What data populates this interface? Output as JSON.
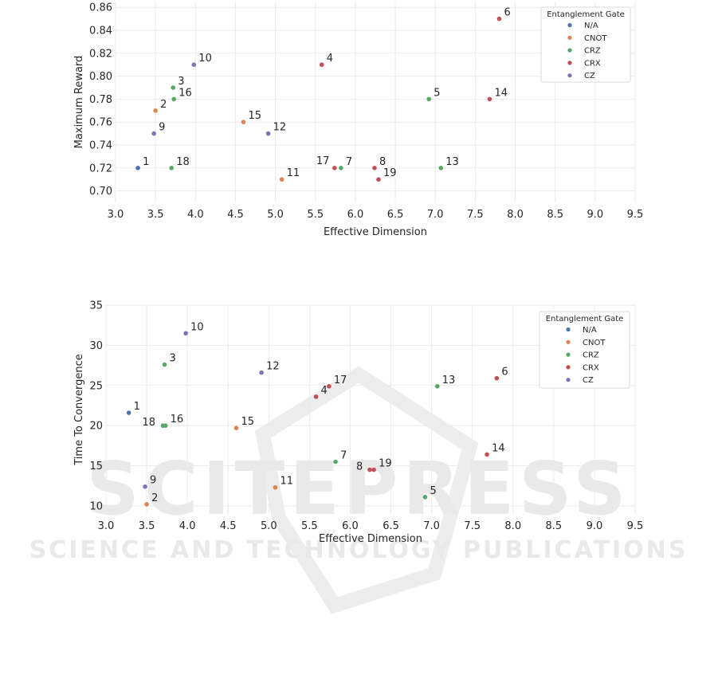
{
  "watermark": {
    "main": "SCITEPRESS",
    "sub": "SCIENCE AND TECHNOLOGY PUBLICATIONS"
  },
  "colors": {
    "N/A": "#4c72b0",
    "CNOT": "#dd8452",
    "CRZ": "#55a868",
    "CRX": "#c44e52",
    "CZ": "#8172b3"
  },
  "chart_data": [
    {
      "type": "scatter",
      "xlabel": "Effective Dimension",
      "ylabel": "Maximum Reward",
      "xlim": [
        3.0,
        9.5
      ],
      "ylim": [
        0.69,
        0.865
      ],
      "xticks": [
        "3.0",
        "3.5",
        "4.0",
        "4.5",
        "5.0",
        "5.5",
        "6.0",
        "6.5",
        "7.0",
        "7.5",
        "8.0",
        "8.5",
        "9.0",
        "9.5"
      ],
      "yticks": [
        "0.70",
        "0.72",
        "0.74",
        "0.76",
        "0.78",
        "0.80",
        "0.82",
        "0.84",
        "0.86"
      ],
      "grid": true,
      "legend": {
        "title": "Entanglement Gate",
        "entries": [
          "N/A",
          "CNOT",
          "CRZ",
          "CRX",
          "CZ"
        ],
        "placement": "top-right"
      },
      "points": [
        {
          "label": "1",
          "x": 3.28,
          "y": 0.72,
          "gate": "N/A"
        },
        {
          "label": "2",
          "x": 3.5,
          "y": 0.77,
          "gate": "CNOT"
        },
        {
          "label": "3",
          "x": 3.72,
          "y": 0.79,
          "gate": "CRZ"
        },
        {
          "label": "4",
          "x": 5.58,
          "y": 0.81,
          "gate": "CRX"
        },
        {
          "label": "5",
          "x": 6.92,
          "y": 0.78,
          "gate": "CRZ"
        },
        {
          "label": "6",
          "x": 7.8,
          "y": 0.85,
          "gate": "CRX"
        },
        {
          "label": "7",
          "x": 5.82,
          "y": 0.72,
          "gate": "CRZ"
        },
        {
          "label": "8",
          "x": 6.24,
          "y": 0.72,
          "gate": "CRX"
        },
        {
          "label": "9",
          "x": 3.48,
          "y": 0.75,
          "gate": "CZ"
        },
        {
          "label": "10",
          "x": 3.98,
          "y": 0.81,
          "gate": "CZ"
        },
        {
          "label": "11",
          "x": 5.08,
          "y": 0.71,
          "gate": "CNOT"
        },
        {
          "label": "12",
          "x": 4.91,
          "y": 0.75,
          "gate": "CZ"
        },
        {
          "label": "13",
          "x": 7.07,
          "y": 0.72,
          "gate": "CRZ"
        },
        {
          "label": "14",
          "x": 7.68,
          "y": 0.78,
          "gate": "CRX"
        },
        {
          "label": "15",
          "x": 4.6,
          "y": 0.76,
          "gate": "CNOT"
        },
        {
          "label": "16",
          "x": 3.73,
          "y": 0.78,
          "gate": "CRZ"
        },
        {
          "label": "17",
          "x": 5.74,
          "y": 0.72,
          "gate": "CRX"
        },
        {
          "label": "18",
          "x": 3.7,
          "y": 0.72,
          "gate": "CRZ"
        },
        {
          "label": "19",
          "x": 6.29,
          "y": 0.71,
          "gate": "CRX"
        }
      ]
    },
    {
      "type": "scatter",
      "xlabel": "Effective Dimension",
      "ylabel": "Time To Convergence",
      "xlim": [
        3.0,
        9.5
      ],
      "ylim": [
        9,
        35
      ],
      "xticks": [
        "3.0",
        "3.5",
        "4.0",
        "4.5",
        "5.0",
        "5.5",
        "6.0",
        "6.5",
        "7.0",
        "7.5",
        "8.0",
        "8.5",
        "9.0",
        "9.5"
      ],
      "yticks": [
        "10",
        "15",
        "20",
        "25",
        "30",
        "35"
      ],
      "grid": true,
      "legend": {
        "title": "Entanglement Gate",
        "entries": [
          "N/A",
          "CNOT",
          "CRZ",
          "CRX",
          "CZ"
        ],
        "placement": "top-right"
      },
      "points": [
        {
          "label": "1",
          "x": 3.28,
          "y": 21.6,
          "gate": "N/A"
        },
        {
          "label": "2",
          "x": 3.5,
          "y": 10.2,
          "gate": "CNOT"
        },
        {
          "label": "3",
          "x": 3.72,
          "y": 27.6,
          "gate": "CRZ"
        },
        {
          "label": "4",
          "x": 5.58,
          "y": 23.6,
          "gate": "CRX"
        },
        {
          "label": "5",
          "x": 6.92,
          "y": 11.1,
          "gate": "CRZ"
        },
        {
          "label": "6",
          "x": 7.8,
          "y": 25.9,
          "gate": "CRX"
        },
        {
          "label": "7",
          "x": 5.82,
          "y": 15.5,
          "gate": "CRZ"
        },
        {
          "label": "8",
          "x": 6.24,
          "y": 14.5,
          "gate": "CRX"
        },
        {
          "label": "9",
          "x": 3.48,
          "y": 12.4,
          "gate": "CZ"
        },
        {
          "label": "10",
          "x": 3.98,
          "y": 31.5,
          "gate": "CZ"
        },
        {
          "label": "11",
          "x": 5.08,
          "y": 12.3,
          "gate": "CNOT"
        },
        {
          "label": "12",
          "x": 4.91,
          "y": 26.6,
          "gate": "CZ"
        },
        {
          "label": "13",
          "x": 7.07,
          "y": 24.9,
          "gate": "CRZ"
        },
        {
          "label": "14",
          "x": 7.68,
          "y": 16.4,
          "gate": "CRX"
        },
        {
          "label": "15",
          "x": 4.6,
          "y": 19.7,
          "gate": "CNOT"
        },
        {
          "label": "16",
          "x": 3.73,
          "y": 20.0,
          "gate": "CRZ"
        },
        {
          "label": "17",
          "x": 5.74,
          "y": 24.9,
          "gate": "CRX"
        },
        {
          "label": "18",
          "x": 3.7,
          "y": 20.0,
          "gate": "CRZ"
        },
        {
          "label": "19",
          "x": 6.29,
          "y": 14.5,
          "gate": "CRX"
        }
      ]
    }
  ]
}
